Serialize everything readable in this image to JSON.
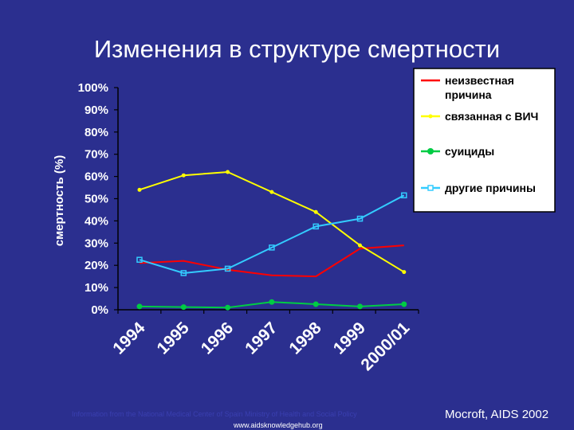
{
  "slide": {
    "title": "Изменения в структуре смертности",
    "footer_url": "www.aidsknowledgehub.org",
    "footer_note": "Information from the National Medical Center of Spain Ministry of Health and Social Policy",
    "citation": "Mocroft, AIDS 2002"
  },
  "colors": {
    "background": "#2b2f8f",
    "plot_area": "#2b2f8f",
    "axis": "#000000",
    "text": "#ffffff"
  },
  "chart_data": {
    "type": "line",
    "title": "",
    "xlabel": "",
    "ylabel": "смертность (%)",
    "ylim": [
      0,
      100
    ],
    "yticks": [
      "0%",
      "10%",
      "20%",
      "30%",
      "40%",
      "50%",
      "60%",
      "70%",
      "80%",
      "90%",
      "100%"
    ],
    "grid": false,
    "legend_position": "top-right",
    "categories": [
      "1994",
      "1995",
      "1996",
      "1997",
      "1998",
      "1999",
      "2000/01"
    ],
    "series": [
      {
        "name": "неизвестная причина",
        "color": "#ff0000",
        "marker": "none",
        "values": [
          21,
          22,
          18,
          15.5,
          15,
          27.5,
          29
        ]
      },
      {
        "name": "связанная с ВИЧ",
        "color": "#ffff00",
        "marker": "dot",
        "values": [
          54,
          60.5,
          62,
          53,
          44,
          29,
          17
        ]
      },
      {
        "name": "суициды",
        "color": "#00cc44",
        "marker": "circle",
        "values": [
          1.5,
          1.2,
          1,
          3.5,
          2.5,
          1.5,
          2.5
        ]
      },
      {
        "name": "другие причины",
        "color": "#33ccff",
        "marker": "square",
        "values": [
          22.5,
          16.5,
          18.5,
          28,
          37.5,
          41,
          51.5
        ]
      }
    ]
  }
}
